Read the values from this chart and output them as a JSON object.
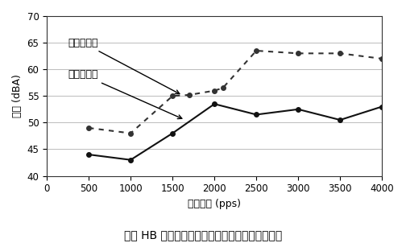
{
  "title": "两相 HB 型步进电机的定子刚性不同时的噪音比较",
  "xlabel": "驱动频率 (pps)",
  "ylabel": "噪音 (dBA)",
  "xlim": [
    0,
    4000
  ],
  "ylim": [
    40,
    70
  ],
  "xticks": [
    0,
    500,
    1000,
    1500,
    2000,
    2500,
    3000,
    3500,
    4000
  ],
  "yticks": [
    40,
    45,
    50,
    55,
    60,
    65,
    70
  ],
  "series_after": {
    "label": "刚性改善后",
    "x": [
      500,
      1000,
      1500,
      1700,
      2000,
      2100,
      2500,
      3000,
      3500,
      4000
    ],
    "y": [
      49.0,
      48.0,
      55.0,
      55.2,
      56.0,
      56.5,
      63.5,
      63.0,
      63.0,
      62.0
    ],
    "linestyle": "dotted",
    "color": "#333333",
    "marker": "o",
    "markersize": 4
  },
  "series_before": {
    "label": "刚性改善前",
    "x": [
      500,
      1000,
      1500,
      2000,
      2500,
      3000,
      3500,
      4000
    ],
    "y": [
      44.0,
      43.0,
      48.0,
      53.5,
      51.5,
      52.5,
      50.5,
      53.0
    ],
    "linestyle": "solid",
    "color": "#111111",
    "marker": "o",
    "markersize": 4
  },
  "ann_after_text": "刚性改善后",
  "ann_before_text": "刚性改善前",
  "background_color": "#ffffff",
  "grid_color": "#bbbbbb",
  "font_color": "#000000",
  "title_fontsize": 10,
  "axis_fontsize": 9,
  "tick_fontsize": 8.5,
  "ann_fontsize": 9
}
